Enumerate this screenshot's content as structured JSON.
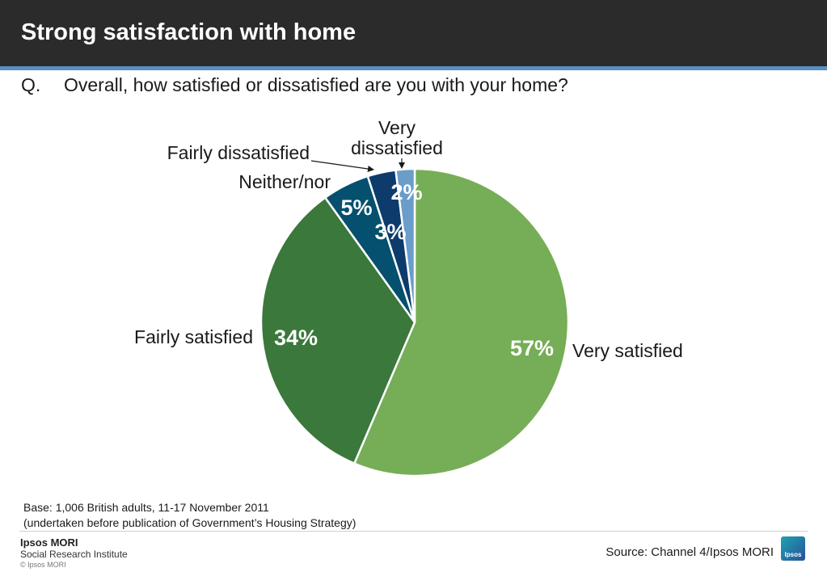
{
  "header": {
    "title": "Strong satisfaction with home"
  },
  "question": {
    "prefix": "Q.",
    "text": "Overall, how satisfied or dissatisfied are you with your home?"
  },
  "colors": {
    "very_satisfied": "#76ad57",
    "fairly_satisfied": "#3b783b",
    "neither_nor": "#04506e",
    "fairly_dissatisfied": "#0d3b6b",
    "very_dissatisfied": "#6a9dca"
  },
  "chart_data": {
    "type": "pie",
    "title": "",
    "slices": [
      {
        "label": "Very satisfied",
        "value": 57,
        "display": "57%"
      },
      {
        "label": "Fairly satisfied",
        "value": 34,
        "display": "34%"
      },
      {
        "label": "Neither/nor",
        "value": 5,
        "display": "5%"
      },
      {
        "label": "Fairly dissatisfied",
        "value": 3,
        "display": "3%"
      },
      {
        "label": "Very dissatisfied",
        "value": 2,
        "display": "2%"
      }
    ]
  },
  "labels": {
    "very_dissatisfied_line1": "Very",
    "very_dissatisfied_line2": "dissatisfied"
  },
  "footnote": {
    "base": "Base: 1,006 British adults, 11-17 November 2011",
    "note": "(undertaken before publication of Government’s Housing Strategy)"
  },
  "footer": {
    "logo_name": "Ipsos MORI",
    "logo_sub": "Social Research Institute",
    "copyright": "© Ipsos MORI",
    "source": "Source: Channel 4/Ipsos MORI",
    "badge_text": "Ipsos"
  }
}
